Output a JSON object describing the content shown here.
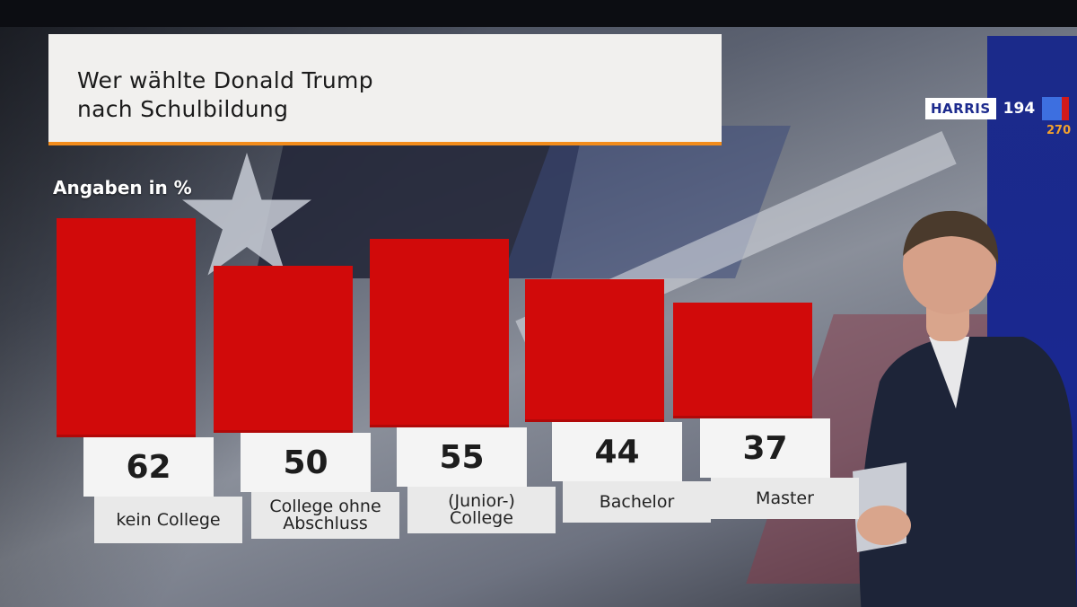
{
  "scoreboard": {
    "candidate": "HARRIS",
    "electors": "194",
    "target": "270",
    "colors": {
      "dem": "#3d6fe0",
      "rep": "#d11a1a",
      "target": "#f3a12d"
    }
  },
  "chart_data": {
    "type": "bar",
    "title": "Wer wählte Donald Trump nach Schulbildung",
    "title_lines": [
      "Wer wählte Donald Trump",
      "nach Schulbildung"
    ],
    "unit_label": "Angaben in %",
    "categories": [
      "kein College",
      "College ohne Abschluss",
      "(Junior-) College",
      "Bachelor",
      "Master"
    ],
    "category_lines": [
      [
        "kein College"
      ],
      [
        "College ohne",
        "Abschluss"
      ],
      [
        "(Junior-)",
        "College"
      ],
      [
        "Bachelor"
      ],
      [
        "Master"
      ]
    ],
    "values": [
      62,
      50,
      55,
      44,
      37
    ],
    "value_labels": [
      "62",
      "50",
      "55",
      "44",
      "37"
    ],
    "bar_color": "#d10a0a",
    "accent_color": "#f28c1c",
    "ylim": [
      0,
      62
    ],
    "grid": false,
    "legend": "none"
  }
}
